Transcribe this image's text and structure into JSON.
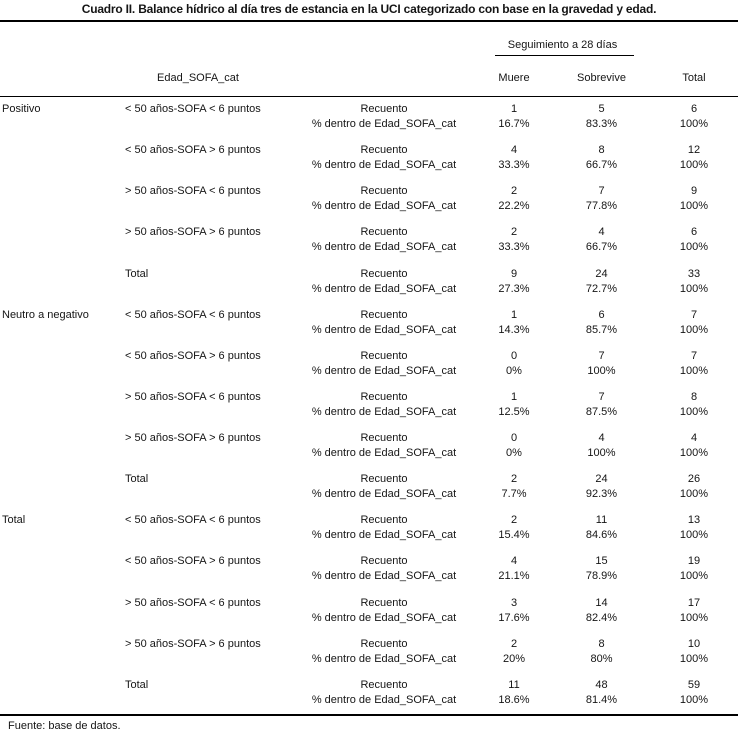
{
  "title": "Cuadro II. Balance hídrico al día tres de estancia en la UCI categorizado con base en la gravedad y edad.",
  "footer": "Fuente: base de datos.",
  "colors": {
    "text": "#151515",
    "rule": "#000000",
    "background": "#ffffff"
  },
  "table": {
    "header": {
      "row_dimension_label": "Edad_SOFA_cat",
      "col_group_label": "Seguimiento a 28 días",
      "columns": [
        "Muere",
        "Sobrevive",
        "Total"
      ]
    },
    "stat_labels": [
      "Recuento",
      "% dentro de Edad_SOFA_cat"
    ],
    "groups": [
      {
        "label": "Positivo",
        "rows": [
          {
            "category": "< 50 años-SOFA < 6 puntos",
            "recuento": [
              "1",
              "5",
              "6"
            ],
            "pct": [
              "16.7%",
              "83.3%",
              "100%"
            ]
          },
          {
            "category": "< 50 años-SOFA > 6 puntos",
            "recuento": [
              "4",
              "8",
              "12"
            ],
            "pct": [
              "33.3%",
              "66.7%",
              "100%"
            ]
          },
          {
            "category": "> 50 años-SOFA < 6 puntos",
            "recuento": [
              "2",
              "7",
              "9"
            ],
            "pct": [
              "22.2%",
              "77.8%",
              "100%"
            ]
          },
          {
            "category": "> 50 años-SOFA > 6 puntos",
            "recuento": [
              "2",
              "4",
              "6"
            ],
            "pct": [
              "33.3%",
              "66.7%",
              "100%"
            ]
          },
          {
            "category": "Total",
            "recuento": [
              "9",
              "24",
              "33"
            ],
            "pct": [
              "27.3%",
              "72.7%",
              "100%"
            ]
          }
        ]
      },
      {
        "label": "Neutro a negativo",
        "rows": [
          {
            "category": "< 50 años-SOFA < 6 puntos",
            "recuento": [
              "1",
              "6",
              "7"
            ],
            "pct": [
              "14.3%",
              "85.7%",
              "100%"
            ]
          },
          {
            "category": "< 50 años-SOFA > 6 puntos",
            "recuento": [
              "0",
              "7",
              "7"
            ],
            "pct": [
              "0%",
              "100%",
              "100%"
            ]
          },
          {
            "category": "> 50 años-SOFA < 6 puntos",
            "recuento": [
              "1",
              "7",
              "8"
            ],
            "pct": [
              "12.5%",
              "87.5%",
              "100%"
            ]
          },
          {
            "category": "> 50 años-SOFA > 6 puntos",
            "recuento": [
              "0",
              "4",
              "4"
            ],
            "pct": [
              "0%",
              "100%",
              "100%"
            ]
          },
          {
            "category": "Total",
            "recuento": [
              "2",
              "24",
              "26"
            ],
            "pct": [
              "7.7%",
              "92.3%",
              "100%"
            ]
          }
        ]
      },
      {
        "label": "Total",
        "rows": [
          {
            "category": "< 50 años-SOFA < 6 puntos",
            "recuento": [
              "2",
              "11",
              "13"
            ],
            "pct": [
              "15.4%",
              "84.6%",
              "100%"
            ]
          },
          {
            "category": "< 50 años-SOFA > 6 puntos",
            "recuento": [
              "4",
              "15",
              "19"
            ],
            "pct": [
              "21.1%",
              "78.9%",
              "100%"
            ]
          },
          {
            "category": "> 50 años-SOFA < 6 puntos",
            "recuento": [
              "3",
              "14",
              "17"
            ],
            "pct": [
              "17.6%",
              "82.4%",
              "100%"
            ]
          },
          {
            "category": "> 50 años-SOFA > 6 puntos",
            "recuento": [
              "2",
              "8",
              "10"
            ],
            "pct": [
              "20%",
              "80%",
              "100%"
            ]
          },
          {
            "category": "Total",
            "recuento": [
              "11",
              "48",
              "59"
            ],
            "pct": [
              "18.6%",
              "81.4%",
              "100%"
            ]
          }
        ]
      }
    ]
  }
}
